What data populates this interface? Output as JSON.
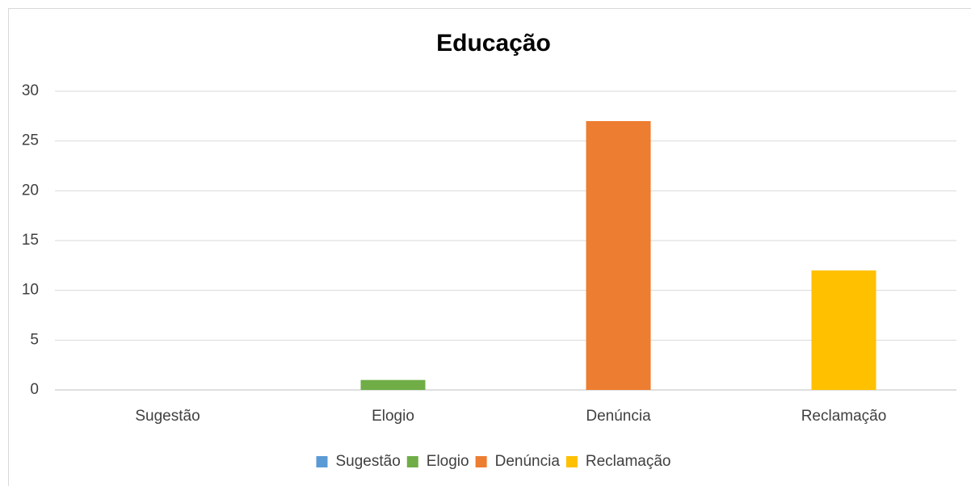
{
  "chart_data": {
    "type": "bar",
    "title": "Educação",
    "categories": [
      "Sugestão",
      "Elogio",
      "Denúncia",
      "Reclamação"
    ],
    "values": [
      0,
      1,
      27,
      12
    ],
    "colors": [
      "#5b9bd5",
      "#70ad47",
      "#ed7d31",
      "#ffc000"
    ],
    "ylim": [
      0,
      30
    ],
    "yticks": [
      0,
      5,
      10,
      15,
      20,
      25,
      30
    ],
    "grid": true,
    "legend": "bottom"
  }
}
